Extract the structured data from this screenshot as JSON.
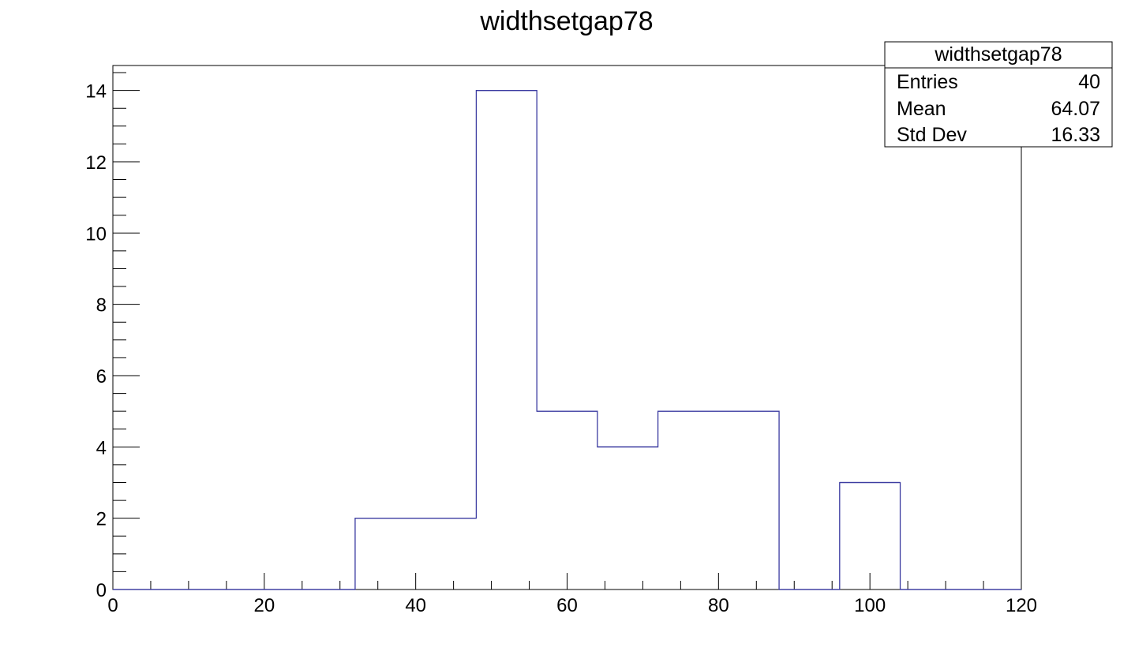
{
  "chart_data": {
    "type": "bar",
    "title": "widthsetgap78",
    "xlabel": "",
    "ylabel": "",
    "xlim": [
      0,
      120
    ],
    "ylim": [
      0,
      14.7
    ],
    "bin_width": 8,
    "bin_edges": [
      0,
      8,
      16,
      24,
      32,
      40,
      48,
      56,
      64,
      72,
      80,
      88,
      96,
      104,
      112,
      120
    ],
    "values": [
      0,
      0,
      0,
      0,
      2,
      2,
      14,
      5,
      4,
      5,
      5,
      0,
      3,
      0,
      0
    ],
    "x_ticks": [
      0,
      20,
      40,
      60,
      80,
      100,
      120
    ],
    "x_tick_labels": [
      "0",
      "20",
      "40",
      "60",
      "80",
      "100",
      "120"
    ],
    "y_ticks": [
      0,
      2,
      4,
      6,
      8,
      10,
      12,
      14
    ],
    "y_tick_labels": [
      "0",
      "2",
      "4",
      "6",
      "8",
      "10",
      "12",
      "14"
    ],
    "grid": false,
    "line_color": "#3a3aa0",
    "stats_box": {
      "placement": "top-right",
      "title": "widthsetgap78",
      "rows": [
        {
          "label": "Entries",
          "value": "40"
        },
        {
          "label": "Mean",
          "value": "64.07"
        },
        {
          "label": "Std Dev",
          "value": "16.33"
        }
      ]
    }
  }
}
